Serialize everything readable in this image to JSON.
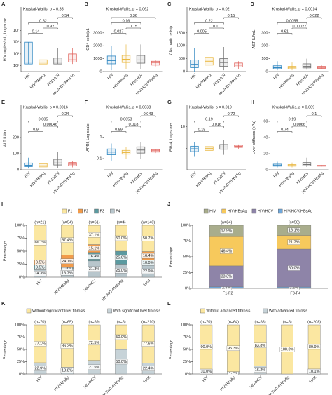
{
  "chart_data": [
    {
      "type": "box",
      "label": "A",
      "title": "Kruskal-Wallis, p = 0.35",
      "y_label": "HIV copies/mL, Log scale",
      "categories": [
        "HIV",
        "HIV/HBsAg",
        "HIV/HCV",
        "HIV/HCV/HBsAg"
      ],
      "colors": [
        "#2e86c1",
        "#e9b73f",
        "#6f6f6f",
        "#e0605a"
      ],
      "log_scale": true,
      "ylim": [
        1,
        100000000000
      ],
      "yticks": [
        {
          "value": 10,
          "label": "10¹"
        },
        {
          "value": 1000,
          "label": "10³"
        },
        {
          "value": 100000,
          "label": "10⁵"
        },
        {
          "value": 10000000,
          "label": "10⁷"
        }
      ],
      "boxes": [
        {
          "min": 20,
          "q1": 20,
          "median": 40,
          "q3": 100000,
          "max": 100000
        },
        {
          "min": 20,
          "q1": 20,
          "median": 40,
          "q3": 100,
          "max": 1000
        },
        {
          "min": 20,
          "q1": 20,
          "median": 40,
          "q3": 200,
          "max": 10000
        },
        {
          "min": 20,
          "q1": 40,
          "median": 100,
          "q3": 1000,
          "max": 10000
        }
      ],
      "comparisons": [
        {
          "pair": [
            "HIV",
            "HIV/HBsAg"
          ],
          "label": "0.14"
        },
        {
          "pair": [
            "HIV/HBsAg",
            "HIV/HCV"
          ],
          "label": "0.92"
        },
        {
          "pair": [
            "HIV",
            "HIV/HCV"
          ],
          "label": "0.82"
        },
        {
          "pair": [
            "HIV/HCV",
            "HIV/HCV/HBsAg"
          ],
          "label": "0.54"
        }
      ]
    },
    {
      "type": "box",
      "label": "B",
      "title": "Kruskal-Wallis, p = 0.062",
      "y_label": "CD4 cells/μL",
      "categories": [
        "HIV",
        "HIV/HBsAg",
        "HIV/HCV",
        "HIV/HCV/HBsAg"
      ],
      "colors": [
        "#2e86c1",
        "#e9b73f",
        "#6f6f6f",
        "#e0605a"
      ],
      "log_scale": false,
      "ylim": [
        0,
        5000
      ],
      "yticks": [
        0,
        1000,
        2000,
        3000
      ],
      "boxes": [
        {
          "min": 100,
          "q1": 600,
          "median": 850,
          "q3": 1200,
          "max": 2000
        },
        {
          "min": 200,
          "q1": 700,
          "median": 950,
          "q3": 1250,
          "max": 2100
        },
        {
          "min": 200,
          "q1": 650,
          "median": 900,
          "q3": 1250,
          "max": 2100
        },
        {
          "min": 400,
          "q1": 500,
          "median": 700,
          "q3": 800,
          "max": 900
        }
      ],
      "comparisons": [
        {
          "pair": [
            "HIV",
            "HIV/HBsAg"
          ],
          "label": "0.027"
        },
        {
          "pair": [
            "HIV/HBsAg",
            "HIV/HCV"
          ],
          "label": "0.15"
        },
        {
          "pair": [
            "HIV",
            "HIV/HCV"
          ],
          "label": "0.16"
        },
        {
          "pair": [
            "HIV",
            "HIV/HCV/HBsAg"
          ],
          "label": "0.36"
        }
      ]
    },
    {
      "type": "box",
      "label": "C",
      "title": "Kruskal-Wallis, p = 0.02",
      "y_label": "CD4 nadir cells/μL",
      "categories": [
        "HIV",
        "HIV/HBsAg",
        "HIV/HCV",
        "HIV/HCV/HBsAg"
      ],
      "colors": [
        "#2e86c1",
        "#e9b73f",
        "#6f6f6f",
        "#e0605a"
      ],
      "log_scale": false,
      "ylim": [
        0,
        2500
      ],
      "yticks": [
        0,
        500,
        1000,
        1500
      ],
      "boxes": [
        {
          "min": 0,
          "q1": 150,
          "median": 280,
          "q3": 450,
          "max": 900
        },
        {
          "min": 50,
          "q1": 250,
          "median": 400,
          "q3": 550,
          "max": 1000
        },
        {
          "min": 50,
          "q1": 200,
          "median": 350,
          "q3": 500,
          "max": 950
        },
        {
          "min": 100,
          "q1": 180,
          "median": 250,
          "q3": 330,
          "max": 400
        }
      ],
      "comparisons": [
        {
          "pair": [
            "HIV",
            "HIV/HBsAg"
          ],
          "label": "0.005"
        },
        {
          "pair": [
            "HIV/HBsAg",
            "HIV/HCV"
          ],
          "label": "0.11"
        },
        {
          "pair": [
            "HIV",
            "HIV/HCV"
          ],
          "label": "0.22"
        },
        {
          "pair": [
            "HIV/HCV",
            "HIV/HCV/HBsAg"
          ],
          "label": "0.15"
        }
      ]
    },
    {
      "type": "box",
      "label": "D",
      "title": "Kruskal-Wallis, p = 0.0014",
      "y_label": "AST IU/mL",
      "categories": [
        "HIV",
        "HIV/HBsAg",
        "HIV/HCV",
        "HIV/HCV/HBsAg"
      ],
      "colors": [
        "#2e86c1",
        "#e9b73f",
        "#6f6f6f",
        "#e0605a"
      ],
      "log_scale": false,
      "ylim": [
        0,
        500
      ],
      "yticks": [
        0,
        100,
        200,
        300
      ],
      "boxes": [
        {
          "min": 10,
          "q1": 22,
          "median": 30,
          "q3": 45,
          "max": 80
        },
        {
          "min": 10,
          "q1": 20,
          "median": 28,
          "q3": 40,
          "max": 70
        },
        {
          "min": 15,
          "q1": 28,
          "median": 40,
          "q3": 60,
          "max": 100
        },
        {
          "min": 20,
          "q1": 25,
          "median": 32,
          "q3": 40,
          "max": 50
        }
      ],
      "comparisons": [
        {
          "pair": [
            "HIV",
            "HIV/HBsAg"
          ],
          "label": "0.61"
        },
        {
          "pair": [
            "HIV/HBsAg",
            "HIV/HCV"
          ],
          "label": "0.00027"
        },
        {
          "pair": [
            "HIV",
            "HIV/HCV"
          ],
          "label": "0.0055"
        },
        {
          "pair": [
            "HIV/HCV",
            "HIV/HCV/HBsAg"
          ],
          "label": "0.022"
        }
      ]
    },
    {
      "type": "box",
      "label": "E",
      "title": "Kruskal-Wallis, p = 0.0016",
      "y_label": "ALT IU/mL",
      "categories": [
        "HIV",
        "HIV/HBsAg",
        "HIV/HCV",
        "HIV/HCV/HBsAg"
      ],
      "colors": [
        "#2e86c1",
        "#e9b73f",
        "#6f6f6f",
        "#e0605a"
      ],
      "log_scale": false,
      "ylim": [
        0,
        400
      ],
      "yticks": [
        0,
        100,
        200
      ],
      "boxes": [
        {
          "min": 8,
          "q1": 20,
          "median": 28,
          "q3": 42,
          "max": 75
        },
        {
          "min": 8,
          "q1": 18,
          "median": 25,
          "q3": 38,
          "max": 65
        },
        {
          "min": 12,
          "q1": 30,
          "median": 42,
          "q3": 65,
          "max": 110
        },
        {
          "min": 15,
          "q1": 25,
          "median": 35,
          "q3": 45,
          "max": 55
        }
      ],
      "comparisons": [
        {
          "pair": [
            "HIV",
            "HIV/HBsAg"
          ],
          "label": "0.9"
        },
        {
          "pair": [
            "HIV/HBsAg",
            "HIV/HCV"
          ],
          "label": "0.00046"
        },
        {
          "pair": [
            "HIV",
            "HIV/HCV"
          ],
          "label": "0.005"
        },
        {
          "pair": [
            "HIV/HCV",
            "HIV/HCV/HBsAg"
          ],
          "label": "0.24"
        }
      ]
    },
    {
      "type": "box",
      "label": "F",
      "title": "Kruskal-Wallis, p = 0.0038",
      "y_label": "APRI, Log scale",
      "categories": [
        "HIV",
        "HIV/HBsAg",
        "HIV/HCV",
        "HIV/HCV/HBsAg"
      ],
      "colors": [
        "#2e86c1",
        "#e9b73f",
        "#6f6f6f",
        "#e0605a"
      ],
      "log_scale": true,
      "ylim": [
        0.03,
        30
      ],
      "yticks": [
        0.1,
        1
      ],
      "boxes": [
        {
          "min": 0.08,
          "q1": 0.15,
          "median": 0.2,
          "q3": 0.28,
          "max": 0.5
        },
        {
          "min": 0.1,
          "q1": 0.16,
          "median": 0.19,
          "q3": 0.24,
          "max": 0.35
        },
        {
          "min": 0.1,
          "q1": 0.18,
          "median": 0.25,
          "q3": 0.35,
          "max": 0.6
        },
        {
          "min": 0.18,
          "q1": 0.2,
          "median": 0.23,
          "q3": 0.26,
          "max": 0.28
        }
      ],
      "comparisons": [
        {
          "pair": [
            "HIV",
            "HIV/HBsAg"
          ],
          "label": "0.89"
        },
        {
          "pair": [
            "HIV/HBsAg",
            "HIV/HCV"
          ],
          "label": "0.018"
        },
        {
          "pair": [
            "HIV",
            "HIV/HCV"
          ],
          "label": "0.0053"
        },
        {
          "pair": [
            "HIV/HCV",
            "HIV/HCV/HBsAg"
          ],
          "label": "0.043"
        }
      ]
    },
    {
      "type": "box",
      "label": "G",
      "title": "Kruskal-Wallis, p = 0.019",
      "y_label": "FIB-4, Log scale",
      "categories": [
        "HIV",
        "HIV/HBsAg",
        "HIV/HCV",
        "HIV/HCV/HBsAg"
      ],
      "colors": [
        "#2e86c1",
        "#e9b73f",
        "#6f6f6f",
        "#e0605a"
      ],
      "log_scale": true,
      "ylim": [
        0.1,
        100
      ],
      "yticks": [
        1,
        10
      ],
      "boxes": [
        {
          "min": 0.4,
          "q1": 0.7,
          "median": 0.95,
          "q3": 1.25,
          "max": 2
        },
        {
          "min": 0.5,
          "q1": 0.8,
          "median": 1,
          "q3": 1.2,
          "max": 1.7
        },
        {
          "min": 0.5,
          "q1": 0.9,
          "median": 1.15,
          "q3": 1.5,
          "max": 2.5
        },
        {
          "min": 0.9,
          "q1": 1.1,
          "median": 1.25,
          "q3": 1.4,
          "max": 1.5
        }
      ],
      "comparisons": [
        {
          "pair": [
            "HIV",
            "HIV/HBsAg"
          ],
          "label": "0.18"
        },
        {
          "pair": [
            "HIV/HBsAg",
            "HIV/HCV"
          ],
          "label": "0.016"
        },
        {
          "pair": [
            "HIV",
            "HIV/HCV"
          ],
          "label": "0.19"
        },
        {
          "pair": [
            "HIV/HCV",
            "HIV/HCV/HBsAg"
          ],
          "label": "0.72"
        }
      ]
    },
    {
      "type": "box",
      "label": "H",
      "title": "Kruskal-Wallis, p = 0.009",
      "y_label": "Liver stiffness (kPa)",
      "categories": [
        "HIV",
        "HIV/HBsAg",
        "HIV/HCV",
        "HIV/HCV/HBsAg"
      ],
      "colors": [
        "#2e86c1",
        "#e9b73f",
        "#6f6f6f",
        "#e0605a"
      ],
      "log_scale": false,
      "ylim": [
        0,
        80
      ],
      "yticks": [
        0,
        20,
        40,
        60
      ],
      "boxes": [
        {
          "min": 3,
          "q1": 4.5,
          "median": 5.5,
          "q3": 7,
          "max": 10
        },
        {
          "min": 3,
          "q1": 4.5,
          "median": 5.3,
          "q3": 6.5,
          "max": 9
        },
        {
          "min": 3.5,
          "q1": 5,
          "median": 6.5,
          "q3": 9,
          "max": 15
        },
        {
          "min": 4,
          "q1": 4.5,
          "median": 5,
          "q3": 5.5,
          "max": 6
        }
      ],
      "comparisons": [
        {
          "pair": [
            "HIV",
            "HIV/HBsAg"
          ],
          "label": "0.74"
        },
        {
          "pair": [
            "HIV/HBsAg",
            "HIV/HCV"
          ],
          "label": "0.0066"
        },
        {
          "pair": [
            "HIV",
            "HIV/HCV"
          ],
          "label": "0.19"
        },
        {
          "pair": [
            "HIV/HCV",
            "HIV/HCV/HBsAg"
          ],
          "label": "0.1"
        }
      ]
    },
    {
      "type": "stacked_bar",
      "label": "I",
      "y_label": "Percentage",
      "categories": [
        "HIV",
        "HIV/HBsAg",
        "HIV/HCV",
        "HIV/HCV/HBsAg",
        "Total"
      ],
      "n_labels": [
        "(n=21)",
        "(n=54)",
        "(n=61)",
        "(n=4)",
        "(n=140)"
      ],
      "ylim": [
        0,
        100
      ],
      "yticks": [
        {
          "value": 0,
          "label": "0%"
        },
        {
          "value": 25,
          "label": "25%"
        },
        {
          "value": 50,
          "label": "50%"
        },
        {
          "value": 75,
          "label": "75%"
        },
        {
          "value": 100,
          "label": "100%"
        }
      ],
      "series": [
        {
          "name": "F1",
          "color": "#fbe7a1",
          "values": [
            66.7,
            57.4,
            37.1,
            50.0,
            50.7
          ],
          "value_labels": [
            "66.7%",
            "57.4%",
            "37.1%",
            "50.0%",
            "50.7%"
          ]
        },
        {
          "name": "F2",
          "color": "#f29b4a",
          "values": [
            9.5,
            24.1,
            15.1,
            0,
            16.4
          ],
          "value_labels": [
            "9.5%",
            "24.1%",
            "15.1%",
            null,
            "16.4%"
          ]
        },
        {
          "name": "F3",
          "color": "#5b9aa0",
          "values": [
            9.5,
            1.9,
            16.4,
            25.0,
            10.0
          ],
          "value_labels": [
            "9.5%",
            "1.9%",
            "16.4%",
            "25.0%",
            "10.0%"
          ]
        },
        {
          "name": "F4",
          "color": "#b8c6cc",
          "values": [
            14.3,
            16.7,
            31.3,
            25.0,
            22.9
          ],
          "value_labels": [
            "14.3%",
            "16.7%",
            "31.3%",
            "25.0%",
            "22.9%"
          ]
        }
      ]
    },
    {
      "type": "stacked_bar",
      "label": "J",
      "y_label": "Percentage",
      "categories": [
        "F1-F2",
        "F3-F4"
      ],
      "n_labels": [
        "(n=84)",
        "(n=56)"
      ],
      "ylim": [
        0,
        100
      ],
      "yticks": [
        {
          "value": 0,
          "label": "0%"
        },
        {
          "value": 25,
          "label": "25%"
        },
        {
          "value": 50,
          "label": "50%"
        },
        {
          "value": 75,
          "label": "75%"
        },
        {
          "value": 100,
          "label": "100%"
        }
      ],
      "series": [
        {
          "name": "HIV",
          "color": "#a9ad8c",
          "values": [
            17.9,
            16.1
          ],
          "value_labels": [
            "17.9%",
            "16.1%"
          ]
        },
        {
          "name": "HIV/HBsAg",
          "color": "#f7c95c",
          "values": [
            46.4,
            21.7
          ],
          "value_labels": [
            "46.4%",
            "21.7%"
          ]
        },
        {
          "name": "HIV/HCV",
          "color": "#8e84a8",
          "values": [
            33.3,
            60.0
          ],
          "value_labels": [
            "33.3%",
            "60.0%"
          ]
        },
        {
          "name": "HIV/HCV/HBsAg",
          "color": "#6fa8dc",
          "values": [
            2.4,
            2.2
          ],
          "value_labels": [
            "2.4%",
            "2.2%"
          ]
        }
      ]
    },
    {
      "type": "stacked_bar",
      "label": "K",
      "y_label": "Percentage",
      "categories": [
        "HIV",
        "HIV/HBsAg",
        "HIV/HCV",
        "HIV/HCV/HBsAg",
        "Total"
      ],
      "n_labels": [
        "(n=70)",
        "(n=65)",
        "(n=69)",
        "(n=6)",
        "(n=210)"
      ],
      "ylim": [
        0,
        100
      ],
      "yticks": [
        {
          "value": 0,
          "label": "0%"
        },
        {
          "value": 25,
          "label": "25%"
        },
        {
          "value": 50,
          "label": "50%"
        },
        {
          "value": 75,
          "label": "75%"
        },
        {
          "value": 100,
          "label": "100%"
        }
      ],
      "series": [
        {
          "name": "Without significant liver fibrosis",
          "color": "#fbe7a1",
          "values": [
            77.1,
            86.2,
            72.5,
            50.0,
            77.6
          ],
          "value_labels": [
            "77.1%",
            "86.2%",
            "72.5%",
            "50.0%",
            "77.6%"
          ]
        },
        {
          "name": "With significant liver fibrosis",
          "color": "#c7d3d8",
          "values": [
            22.9,
            13.8,
            27.5,
            50.0,
            22.4
          ],
          "value_labels": [
            "22.9%",
            "13.8%",
            "27.5%",
            "50.0%",
            "22.4%"
          ]
        }
      ]
    },
    {
      "type": "stacked_bar",
      "label": "L",
      "y_label": "Percentage",
      "categories": [
        "HIV",
        "HIV/HBsAg",
        "HIV/HCV",
        "HIV/HCV/HBsAg",
        "Total"
      ],
      "n_labels": [
        "(n=70)",
        "(n=64)",
        "(n=68)",
        "(n=6)",
        "(n=208)"
      ],
      "ylim": [
        0,
        100
      ],
      "yticks": [
        {
          "value": 0,
          "label": "0%"
        },
        {
          "value": 25,
          "label": "25%"
        },
        {
          "value": 50,
          "label": "50%"
        },
        {
          "value": 75,
          "label": "75%"
        },
        {
          "value": 100,
          "label": "100%"
        }
      ],
      "series": [
        {
          "name": "Without advanced fibrosis",
          "color": "#fbe7a1",
          "values": [
            90.0,
            95.3,
            83.8,
            100.0,
            89.9
          ],
          "value_labels": [
            "90.0%",
            "95.3%",
            "83.8%",
            "100.0%",
            "89.9%"
          ]
        },
        {
          "name": "With advanced fibrosis",
          "color": "#c7d3d8",
          "values": [
            10.0,
            4.7,
            16.2,
            0,
            10.1
          ],
          "value_labels": [
            "10.0%",
            "4.7%",
            "16.2%",
            null,
            "10.1%"
          ]
        }
      ]
    }
  ]
}
